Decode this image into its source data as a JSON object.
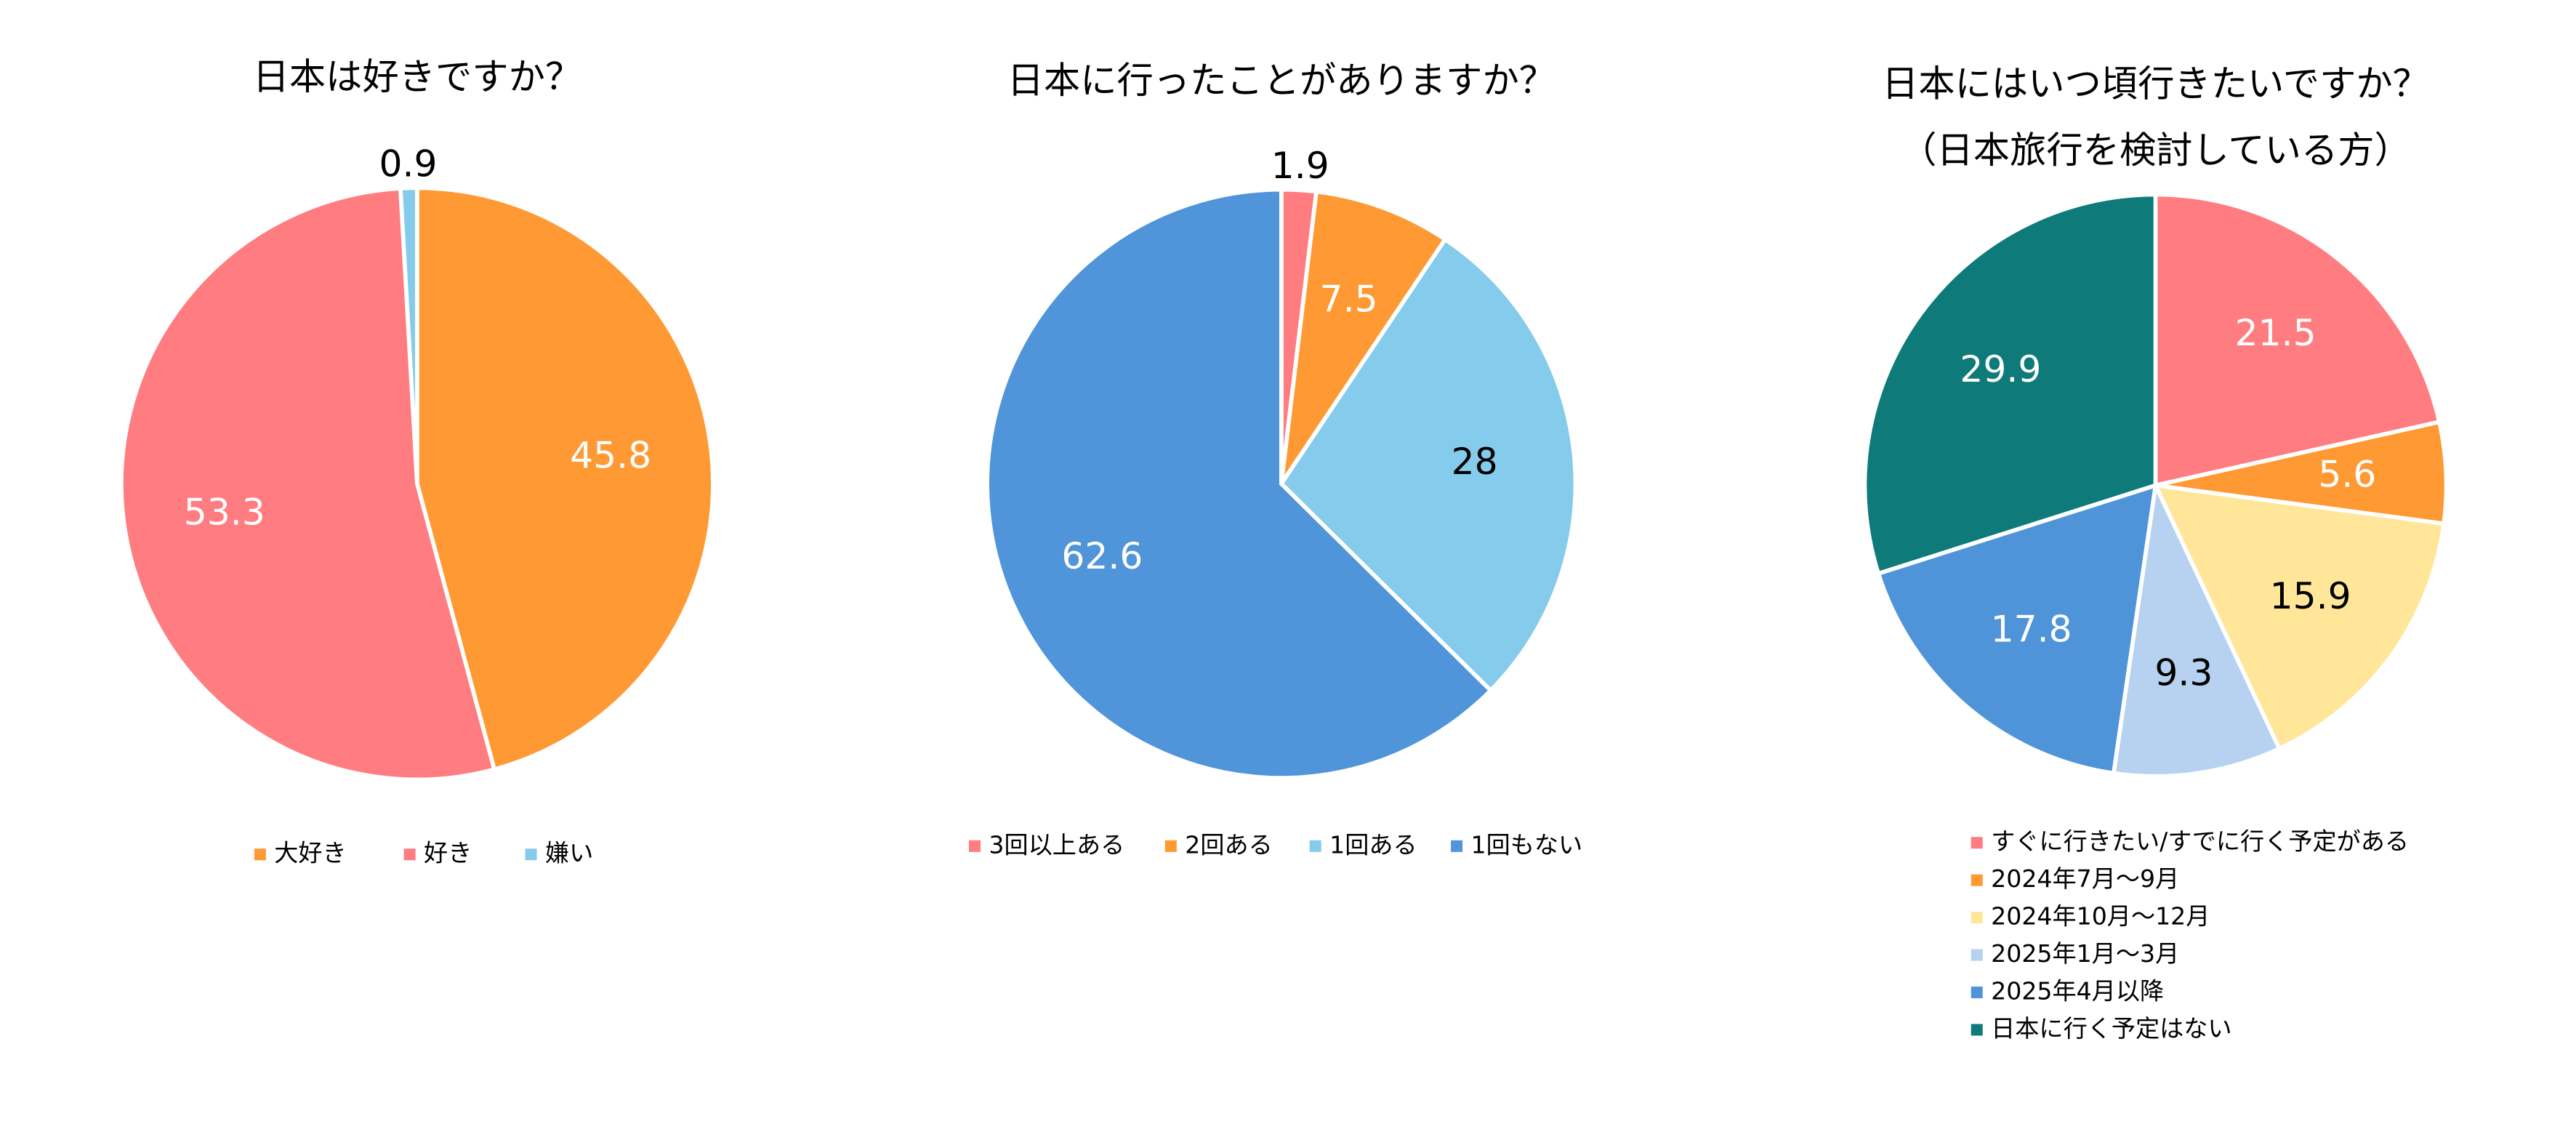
{
  "chart_data": [
    {
      "type": "pie",
      "title": "日本は好きですか？",
      "categories": [
        "大好き",
        "好き",
        "嫌い"
      ],
      "values": [
        45.8,
        53.3,
        0.9
      ],
      "colors": [
        "#FF9933",
        "#FF7C80",
        "#85CBEB"
      ]
    },
    {
      "type": "pie",
      "title": "日本に行ったことがありますか？",
      "categories": [
        "3回以上ある",
        "2回ある",
        "1回ある",
        "1回もない"
      ],
      "values": [
        1.9,
        7.5,
        28,
        62.6
      ],
      "colors": [
        "#FF7C80",
        "#FF9933",
        "#85CBEB",
        "#5095D9"
      ]
    },
    {
      "type": "pie",
      "title": "日本にはいつ頃行きたいですか？",
      "subtitle": "（日本旅行を検討している方）",
      "categories": [
        "すぐに行きたい/すでに行く予定がある",
        "2024年7月～9月",
        "2024年10月～12月",
        "2025年1月～3月",
        "2025年4月以降",
        "日本に行く予定はない"
      ],
      "values": [
        21.5,
        5.6,
        15.9,
        9.3,
        17.8,
        29.9
      ],
      "colors": [
        "#FF7C80",
        "#FF9933",
        "#FFE699",
        "#B6D2F0",
        "#4F94D9",
        "#0E7A7A"
      ]
    }
  ]
}
